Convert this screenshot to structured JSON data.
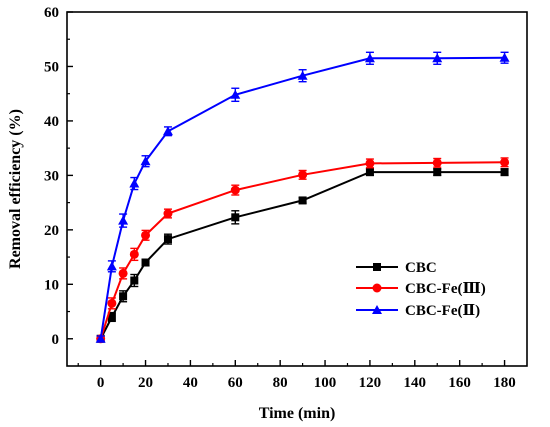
{
  "chart_data": {
    "type": "line",
    "xlabel": "Time (min)",
    "ylabel": "Removal efficiency (%)",
    "xlim": [
      -15,
      190
    ],
    "ylim": [
      -5,
      60
    ],
    "x_ticks": [
      "0",
      "20",
      "40",
      "60",
      "80",
      "100",
      "120",
      "140",
      "160",
      "180"
    ],
    "y_ticks": [
      "0",
      "10",
      "20",
      "30",
      "40",
      "50",
      "60"
    ],
    "x_tick_values": [
      0,
      20,
      40,
      60,
      80,
      100,
      120,
      140,
      160,
      180
    ],
    "y_tick_values": [
      0,
      10,
      20,
      30,
      40,
      50,
      60
    ],
    "grid": false,
    "legend_position": "bottom-right",
    "x": [
      0,
      5,
      10,
      15,
      20,
      30,
      60,
      90,
      120,
      150,
      180
    ],
    "series": [
      {
        "name": "CBC",
        "color": "#000000",
        "marker": "square",
        "values": [
          0,
          4,
          7.8,
          10.7,
          14,
          18.3,
          22.3,
          25.4,
          30.6,
          30.6,
          30.6
        ],
        "errors": [
          0.5,
          0.8,
          1.0,
          1.1,
          0.6,
          0.9,
          1.2,
          0.5,
          0.6,
          0.6,
          0.6
        ]
      },
      {
        "name": "CBC-Fe(Ⅲ)",
        "color": "#ff0000",
        "marker": "circle",
        "values": [
          0,
          6.5,
          12,
          15.5,
          19,
          23,
          27.3,
          30.1,
          32.2,
          32.3,
          32.4
        ],
        "errors": [
          0.5,
          1.0,
          1.0,
          1.1,
          0.9,
          0.8,
          0.9,
          0.8,
          0.8,
          0.8,
          0.8
        ]
      },
      {
        "name": "CBC-Fe(Ⅱ)",
        "color": "#0000ff",
        "marker": "triangle",
        "values": [
          0,
          13.3,
          21.7,
          28.5,
          32.6,
          38.1,
          44.8,
          48.3,
          51.5,
          51.5,
          51.6
        ],
        "errors": [
          0.5,
          1.0,
          1.2,
          1.1,
          1.0,
          0.8,
          1.2,
          1.1,
          1.1,
          1.1,
          1.0
        ]
      }
    ]
  }
}
